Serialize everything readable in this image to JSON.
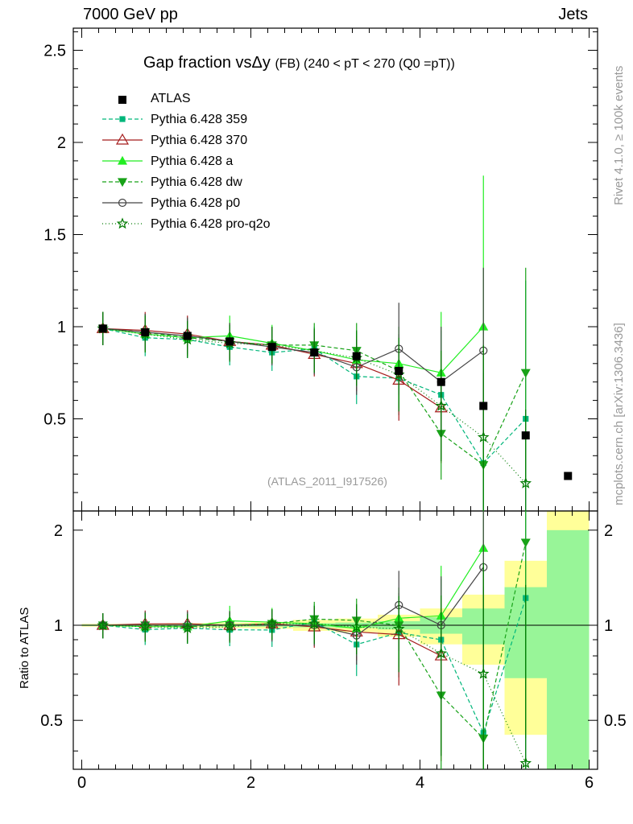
{
  "header": {
    "energy_label": "7000 GeV pp",
    "process_label": "Jets"
  },
  "title": {
    "main": "Gap fraction vsΔy",
    "detail": "(FB) (240 < pT < 270 (Q0 =pT))"
  },
  "side_labels": {
    "rivet": "Rivet 4.1.0, ≥ 100k events",
    "mcplots": "mcplots.cern.ch [arXiv:1306.3436]"
  },
  "reference": "(ATLAS_2011_I917526)",
  "ratio_ylabel": "Ratio to ATLAS",
  "colors": {
    "band_green": "#98f598",
    "band_yellow": "#ffff99",
    "axis": "#000000"
  },
  "chart_data": {
    "type": "scatter",
    "title": "Gap fraction vsΔy (FB) (240 < pT < 270 (Q0 =pT))",
    "xlabel": "",
    "ylabel": "",
    "xlim": [
      -0.1,
      6.1
    ],
    "ylim_main": [
      0,
      2.62
    ],
    "ylim_ratio": [
      0.35,
      2.3
    ],
    "x_ticks": [
      "0",
      "2",
      "4",
      "6"
    ],
    "y_ticks_main": [
      "0.5",
      "1",
      "1.5",
      "2",
      "2.5"
    ],
    "y_ticks_ratio": [
      "0.5",
      "1",
      "2"
    ],
    "data": {
      "name": "ATLAS",
      "x": [
        0.25,
        0.75,
        1.25,
        1.75,
        2.25,
        2.75,
        3.25,
        3.75,
        4.25,
        4.75,
        5.25,
        5.75
      ],
      "y": [
        0.99,
        0.97,
        0.95,
        0.92,
        0.89,
        0.86,
        0.84,
        0.76,
        0.7,
        0.57,
        0.41,
        0.19
      ]
    },
    "ratio_bands": [
      {
        "xlo": 0.0,
        "xhi": 0.5,
        "green": [
          0.995,
          1.005
        ],
        "yellow": [
          0.99,
          1.01
        ]
      },
      {
        "xlo": 0.5,
        "xhi": 1.0,
        "green": [
          0.995,
          1.005
        ],
        "yellow": [
          0.99,
          1.01
        ]
      },
      {
        "xlo": 1.0,
        "xhi": 1.5,
        "green": [
          0.993,
          1.007
        ],
        "yellow": [
          0.985,
          1.015
        ]
      },
      {
        "xlo": 1.5,
        "xhi": 2.0,
        "green": [
          0.99,
          1.01
        ],
        "yellow": [
          0.98,
          1.02
        ]
      },
      {
        "xlo": 2.0,
        "xhi": 2.5,
        "green": [
          0.99,
          1.01
        ],
        "yellow": [
          0.975,
          1.025
        ]
      },
      {
        "xlo": 2.5,
        "xhi": 3.0,
        "green": [
          0.985,
          1.015
        ],
        "yellow": [
          0.96,
          1.04
        ]
      },
      {
        "xlo": 3.0,
        "xhi": 3.5,
        "green": [
          0.98,
          1.02
        ],
        "yellow": [
          0.95,
          1.05
        ]
      },
      {
        "xlo": 3.5,
        "xhi": 4.0,
        "green": [
          0.97,
          1.03
        ],
        "yellow": [
          0.92,
          1.08
        ]
      },
      {
        "xlo": 4.0,
        "xhi": 4.5,
        "green": [
          0.94,
          1.06
        ],
        "yellow": [
          0.87,
          1.13
        ]
      },
      {
        "xlo": 4.5,
        "xhi": 5.0,
        "green": [
          0.87,
          1.13
        ],
        "yellow": [
          0.75,
          1.25
        ]
      },
      {
        "xlo": 5.0,
        "xhi": 5.5,
        "green": [
          0.68,
          1.32
        ],
        "yellow": [
          0.45,
          1.6
        ]
      },
      {
        "xlo": 5.5,
        "xhi": 6.0,
        "green": [
          0.2,
          2.0
        ],
        "yellow": [
          0.1,
          2.5
        ]
      }
    ],
    "series": [
      {
        "name": "Pythia 6.428 359",
        "color": "#00b67a",
        "dash": "5,3",
        "marker": "square-small",
        "x": [
          0.25,
          0.75,
          1.25,
          1.75,
          2.25,
          2.75,
          3.25,
          3.75,
          4.25,
          4.75,
          5.25
        ],
        "y": [
          0.99,
          0.94,
          0.93,
          0.89,
          0.86,
          0.88,
          0.73,
          0.72,
          0.63,
          0.26,
          0.5
        ],
        "err": [
          0.09,
          0.1,
          0.1,
          0.1,
          0.1,
          0.12,
          0.15,
          0.2,
          0.35,
          0.5,
          0.75
        ]
      },
      {
        "name": "Pythia 6.428 370",
        "color": "#a51c1c",
        "dash": "",
        "marker": "triangle-open",
        "x": [
          0.25,
          0.75,
          1.25,
          1.75,
          2.25,
          2.75,
          3.25,
          3.75,
          4.25
        ],
        "y": [
          0.99,
          0.98,
          0.96,
          0.92,
          0.9,
          0.85,
          0.8,
          0.71,
          0.56
        ],
        "err": [
          0.09,
          0.1,
          0.1,
          0.1,
          0.1,
          0.12,
          0.15,
          0.22,
          0.3
        ]
      },
      {
        "name": "Pythia 6.428 a",
        "color": "#22ee22",
        "dash": "",
        "marker": "triangle-up",
        "x": [
          0.25,
          0.75,
          1.25,
          1.75,
          2.25,
          2.75,
          3.25,
          3.75,
          4.25,
          4.75
        ],
        "y": [
          0.99,
          0.96,
          0.94,
          0.95,
          0.91,
          0.87,
          0.82,
          0.8,
          0.75,
          1.0
        ],
        "err": [
          0.09,
          0.1,
          0.1,
          0.11,
          0.1,
          0.12,
          0.15,
          0.2,
          0.33,
          0.82
        ]
      },
      {
        "name": "Pythia 6.428 dw",
        "color": "#18a218",
        "dash": "5,3",
        "marker": "triangle-down",
        "x": [
          0.25,
          0.75,
          1.25,
          1.75,
          2.25,
          2.75,
          3.25,
          3.75,
          4.25,
          4.75,
          5.25
        ],
        "y": [
          0.99,
          0.97,
          0.94,
          0.92,
          0.9,
          0.9,
          0.87,
          0.76,
          0.42,
          0.25,
          0.75
        ],
        "err": [
          0.09,
          0.1,
          0.1,
          0.1,
          0.1,
          0.12,
          0.15,
          0.2,
          0.25,
          0.5,
          0.57
        ]
      },
      {
        "name": "Pythia 6.428 p0",
        "color": "#444444",
        "dash": "",
        "marker": "circle-open",
        "x": [
          0.25,
          0.75,
          1.25,
          1.75,
          2.25,
          2.75,
          3.25,
          3.75,
          4.25,
          4.75
        ],
        "y": [
          0.99,
          0.97,
          0.95,
          0.92,
          0.89,
          0.86,
          0.78,
          0.88,
          0.7,
          0.87
        ],
        "err": [
          0.09,
          0.1,
          0.1,
          0.1,
          0.1,
          0.12,
          0.15,
          0.25,
          0.3,
          0.45
        ]
      },
      {
        "name": "Pythia 6.428 pro-q2o",
        "color": "#007a00",
        "dash": "1,3",
        "marker": "star-open",
        "x": [
          0.25,
          0.75,
          1.25,
          1.75,
          2.25,
          2.75,
          3.25,
          3.75,
          4.25,
          4.75,
          5.25
        ],
        "y": [
          0.99,
          0.96,
          0.93,
          0.91,
          0.9,
          0.87,
          0.83,
          0.74,
          0.57,
          0.4,
          0.15
        ],
        "err": [
          0.09,
          0.1,
          0.1,
          0.1,
          0.1,
          0.12,
          0.15,
          0.2,
          0.3,
          0.5,
          0.4
        ]
      }
    ]
  }
}
